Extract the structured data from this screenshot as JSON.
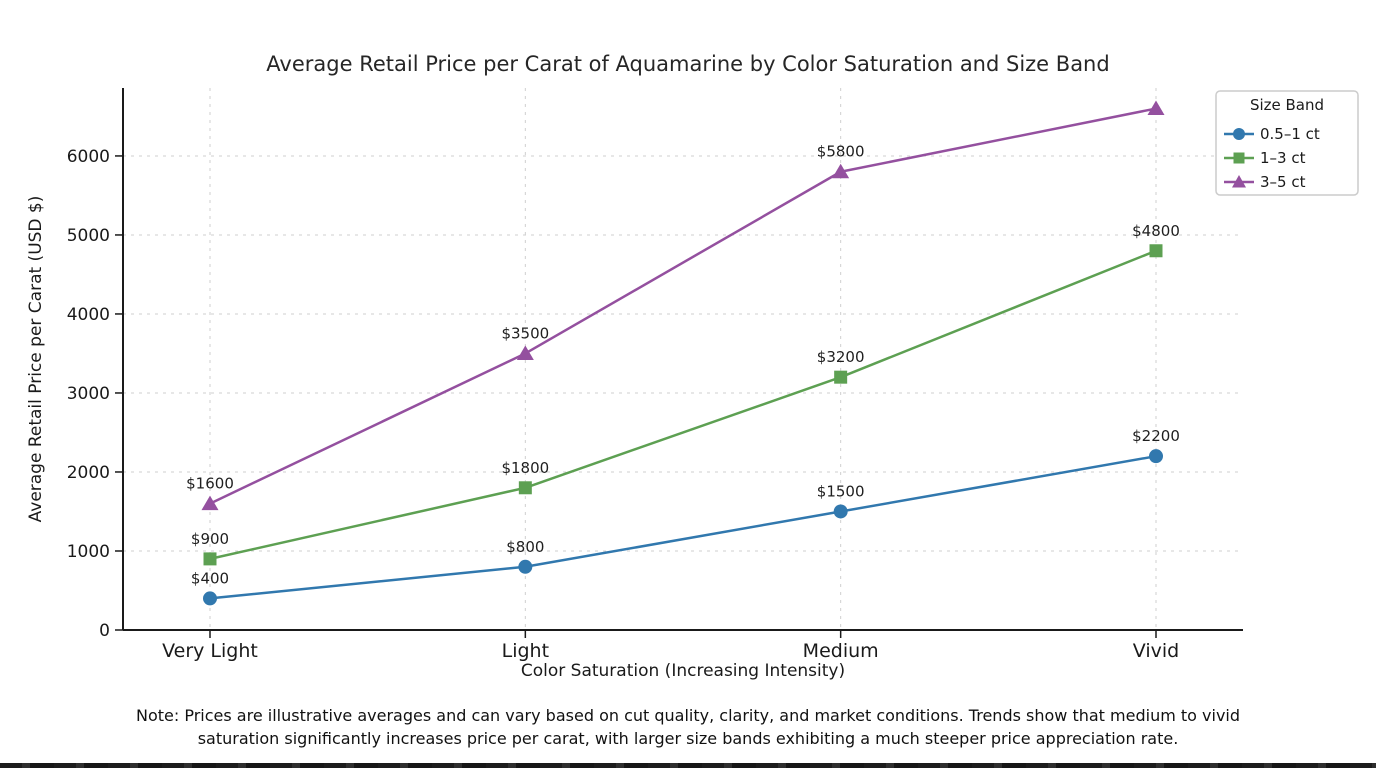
{
  "title": "Average Retail Price per Carat of Aquamarine by Color Saturation and Size Band",
  "xlabel": "Color Saturation (Increasing Intensity)",
  "ylabel": "Average Retail Price per Carat (USD $)",
  "note_line1": "Note: Prices are illustrative averages and can vary based on cut quality, clarity, and market conditions. Trends show that medium to vivid",
  "note_line2": "saturation significantly increases price per carat, with larger size bands exhibiting a much steeper price appreciation rate.",
  "legend": {
    "title": "Size Band",
    "entries": [
      "0.5–1 ct",
      "1–3 ct",
      "3–5 ct"
    ]
  },
  "colors": {
    "blue_series": "#3178ae",
    "green_series": "#5da052",
    "purple_series": "#94509f",
    "grid": "#cfcfcf",
    "axis": "#1a1a1a",
    "annotation": "#1f1f1f",
    "legend_border": "#cccccc"
  },
  "chart_data": {
    "type": "line",
    "title": "Average Retail Price per Carat of Aquamarine by Color Saturation and Size Band",
    "xlabel": "Color Saturation (Increasing Intensity)",
    "ylabel": "Average Retail Price per Carat (USD $)",
    "categories": [
      "Very Light",
      "Light",
      "Medium",
      "Vivid"
    ],
    "series": [
      {
        "name": "0.5–1 ct",
        "color": "#3178ae",
        "marker": "circle",
        "values": [
          400,
          800,
          1500,
          2200
        ],
        "labels": [
          "$400",
          "$800",
          "$1500",
          "$2200"
        ]
      },
      {
        "name": "1–3 ct",
        "color": "#5da052",
        "marker": "square",
        "values": [
          900,
          1800,
          3200,
          4800
        ],
        "labels": [
          "$900",
          "$1800",
          "$3200",
          "$4800"
        ]
      },
      {
        "name": "3–5 ct",
        "color": "#94509f",
        "marker": "triangle",
        "values": [
          1600,
          3500,
          5800,
          6600
        ],
        "labels": [
          "$1600",
          "$3500",
          "$5800",
          ""
        ]
      }
    ],
    "yticks": [
      0,
      1000,
      2000,
      3000,
      4000,
      5000,
      6000
    ],
    "ylim": [
      0,
      6860
    ],
    "grid": "dashed",
    "legend_position": "upper right"
  }
}
